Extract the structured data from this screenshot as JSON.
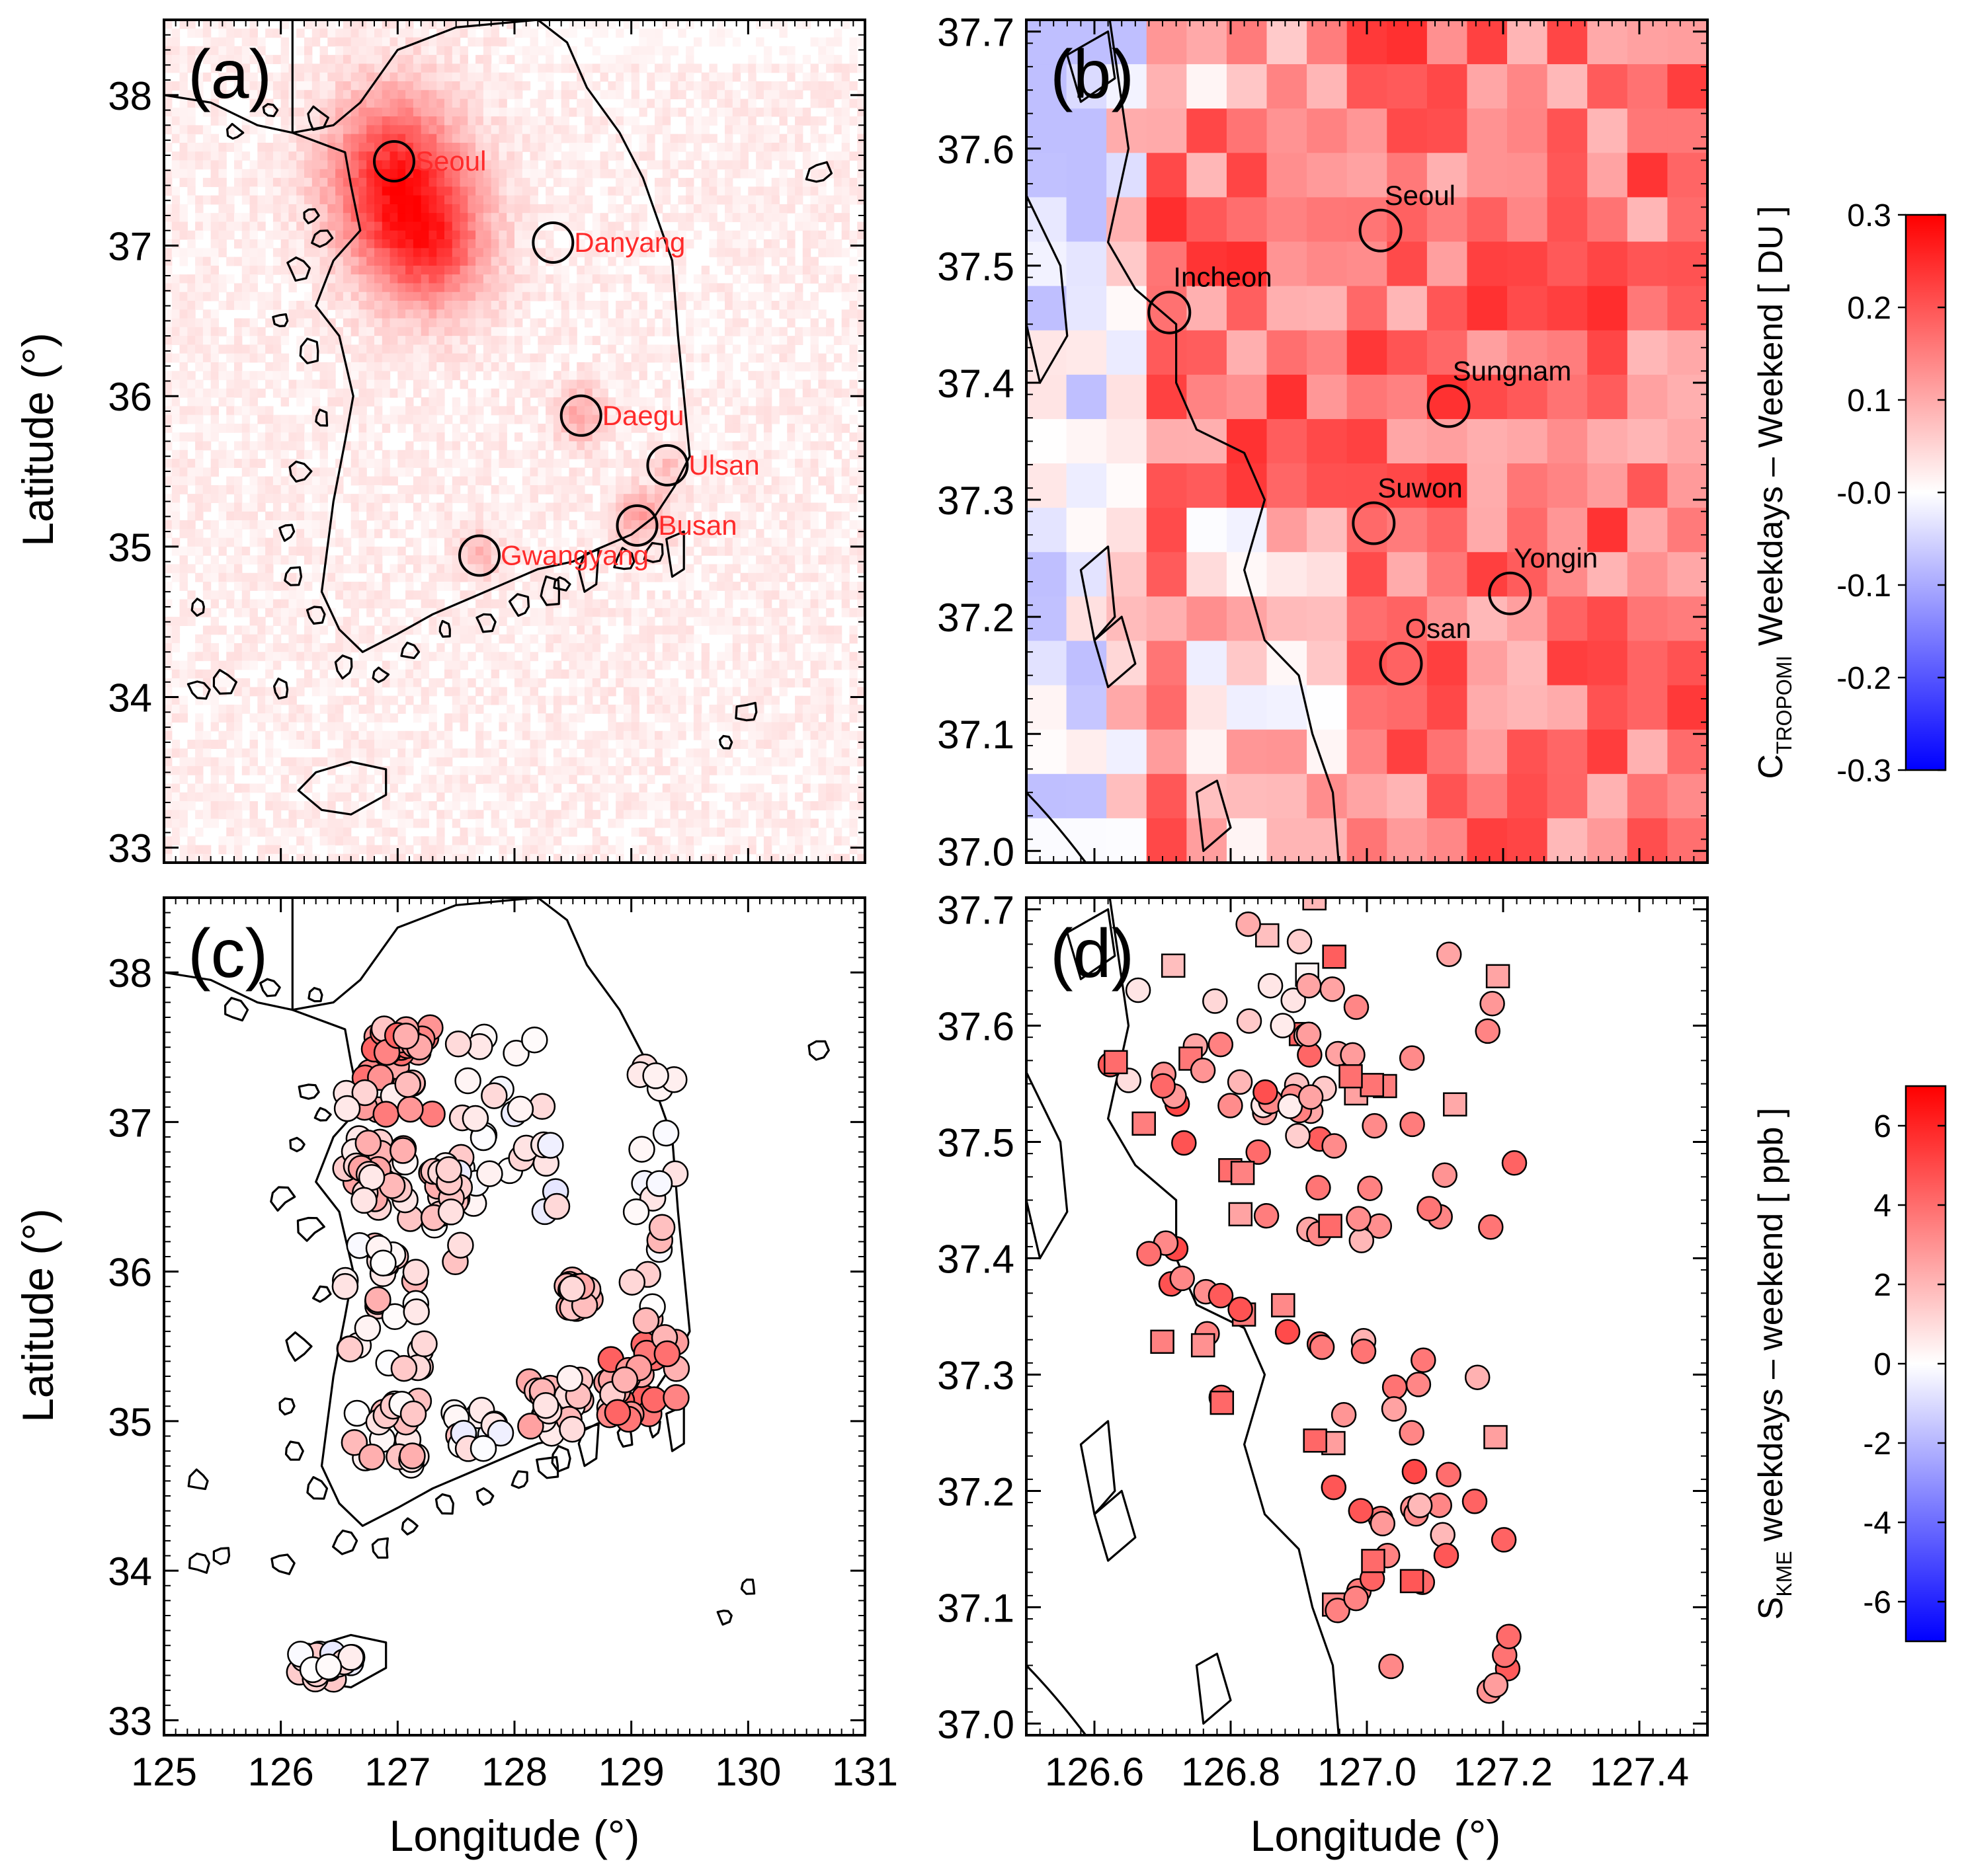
{
  "figure": {
    "panels": [
      {
        "id": "a",
        "label": "(a)",
        "lon_range": [
          125,
          131
        ],
        "lat_range": [
          32.9,
          38.5
        ],
        "kind": "tropomi_grid"
      },
      {
        "id": "b",
        "label": "(b)",
        "lon_range": [
          126.5,
          127.5
        ],
        "lat_range": [
          36.99,
          37.71
        ],
        "kind": "tropomi_grid_zoom"
      },
      {
        "id": "c",
        "label": "(c)",
        "lon_range": [
          125,
          131
        ],
        "lat_range": [
          32.9,
          38.5
        ],
        "kind": "station_points"
      },
      {
        "id": "d",
        "label": "(d)",
        "lon_range": [
          126.5,
          127.5
        ],
        "lat_range": [
          36.99,
          37.71
        ],
        "kind": "station_points_zoom"
      }
    ],
    "axes": {
      "y_label": "Latitude (°)",
      "x_label": "Longitude (°)",
      "full_lat_ticks": [
        "33",
        "34",
        "35",
        "36",
        "37",
        "38"
      ],
      "full_lon_ticks": [
        "125",
        "126",
        "127",
        "128",
        "129",
        "130",
        "131"
      ],
      "zoom_lat_ticks": [
        "37.0",
        "37.1",
        "37.2",
        "37.3",
        "37.4",
        "37.5",
        "37.6",
        "37.7"
      ],
      "zoom_lon_ticks": [
        "126.6",
        "126.8",
        "127.0",
        "127.2",
        "127.4"
      ]
    },
    "colorbars": [
      {
        "id": "top",
        "min": -0.3,
        "max": 0.3,
        "ticks": [
          "0.3",
          "0.2",
          "0.1",
          "-0.0",
          "-0.1",
          "-0.2",
          "-0.3"
        ],
        "title_main": "C",
        "title_sub": "TROPOMI",
        "title_rest": " Weekdays – Weekend [ DU ]"
      },
      {
        "id": "bottom",
        "min": -7,
        "max": 7,
        "ticks": [
          "6",
          "4",
          "2",
          "0",
          "-2",
          "-4",
          "-6"
        ],
        "title_main": "S",
        "title_sub": "KME",
        "title_rest": " weekdays – weekend [ ppb ]"
      }
    ],
    "cities_a": [
      {
        "name": "Seoul",
        "lon": 126.97,
        "lat": 37.56
      },
      {
        "name": "Danyang",
        "lon": 128.33,
        "lat": 37.02
      },
      {
        "name": "Daegu",
        "lon": 128.57,
        "lat": 35.87
      },
      {
        "name": "Ulsan",
        "lon": 129.31,
        "lat": 35.54
      },
      {
        "name": "Busan",
        "lon": 129.05,
        "lat": 35.14
      },
      {
        "name": "Gwangyang",
        "lon": 127.7,
        "lat": 34.94
      }
    ],
    "cities_b": [
      {
        "name": "Seoul",
        "lon": 127.02,
        "lat": 37.53
      },
      {
        "name": "Incheon",
        "lon": 126.71,
        "lat": 37.46
      },
      {
        "name": "Sungnam",
        "lon": 127.12,
        "lat": 37.38
      },
      {
        "name": "Suwon",
        "lon": 127.01,
        "lat": 37.28
      },
      {
        "name": "Yongin",
        "lon": 127.21,
        "lat": 37.22
      },
      {
        "name": "Osan",
        "lon": 127.05,
        "lat": 37.16
      }
    ],
    "colors": {
      "max_red": "#ff0000",
      "min_blue": "#0000ff",
      "mid": "#ffffff",
      "city_text": "#ff2b2b"
    }
  }
}
